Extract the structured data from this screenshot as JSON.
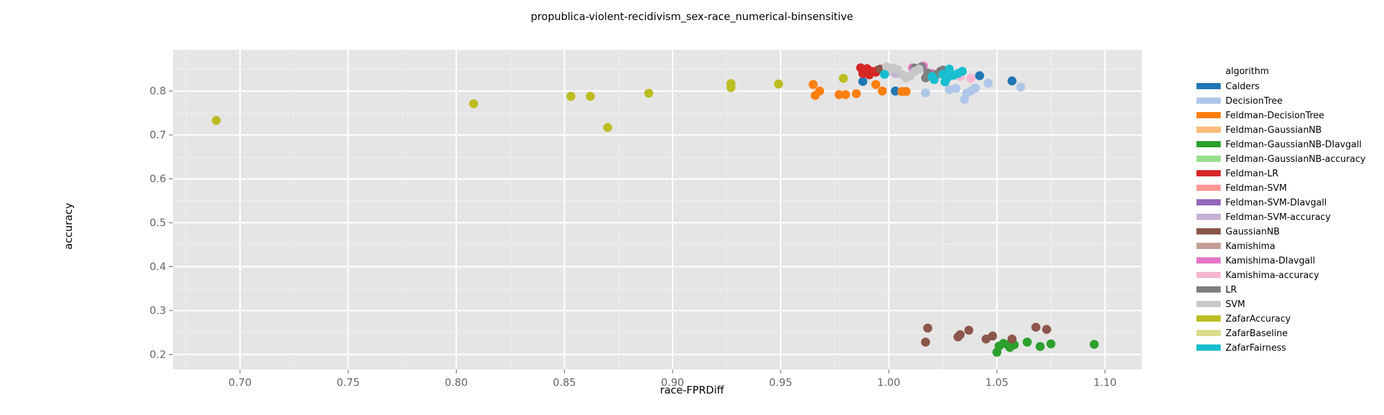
{
  "chart_data": {
    "type": "scatter",
    "title": "propublica-violent-recidivism_sex-race_numerical-binsensitive",
    "xlabel": "race-FPRDiff",
    "ylabel": "accuracy",
    "xlim": [
      0.669,
      1.117
    ],
    "ylim": [
      0.166,
      0.894
    ],
    "x_ticks": [
      0.7,
      0.75,
      0.8,
      0.85,
      0.9,
      0.95,
      1.0,
      1.05,
      1.1
    ],
    "x_tick_labels": [
      "0.70",
      "0.75",
      "0.80",
      "0.85",
      "0.90",
      "0.95",
      "1.00",
      "1.05",
      "1.10"
    ],
    "y_ticks": [
      0.2,
      0.3,
      0.4,
      0.5,
      0.6,
      0.7,
      0.8
    ],
    "y_tick_labels": [
      "0.2",
      "0.3",
      "0.4",
      "0.5",
      "0.6",
      "0.7",
      "0.8"
    ],
    "grid": true,
    "legend_position": "right",
    "legend_title": "algorithm",
    "series": [
      {
        "name": "Calders",
        "color": "#1f77b4",
        "points": [
          [
            0.988,
            0.822
          ],
          [
            1.003,
            0.8
          ],
          [
            1.042,
            0.835
          ],
          [
            1.057,
            0.823
          ]
        ]
      },
      {
        "name": "DecisionTree",
        "color": "#aec7e8",
        "points": [
          [
            1.017,
            0.796
          ],
          [
            1.028,
            0.803
          ],
          [
            1.031,
            0.806
          ],
          [
            1.035,
            0.781
          ],
          [
            1.036,
            0.795
          ],
          [
            1.038,
            0.8
          ],
          [
            1.04,
            0.807
          ],
          [
            1.046,
            0.818
          ],
          [
            1.061,
            0.809
          ]
        ]
      },
      {
        "name": "Feldman-DecisionTree",
        "color": "#ff7f0e",
        "points": [
          [
            0.965,
            0.815
          ],
          [
            0.966,
            0.79
          ],
          [
            0.968,
            0.8
          ],
          [
            0.977,
            0.792
          ],
          [
            0.98,
            0.792
          ],
          [
            0.985,
            0.794
          ],
          [
            0.994,
            0.815
          ],
          [
            0.997,
            0.8
          ],
          [
            1.006,
            0.799
          ],
          [
            1.008,
            0.799
          ]
        ]
      },
      {
        "name": "Feldman-GaussianNB",
        "color": "#ffbb78",
        "points": []
      },
      {
        "name": "Feldman-GaussianNB-DIavgall",
        "color": "#2ca02c",
        "points": [
          [
            1.05,
            0.205
          ],
          [
            1.051,
            0.219
          ],
          [
            1.053,
            0.225
          ],
          [
            1.055,
            0.222
          ],
          [
            1.056,
            0.216
          ],
          [
            1.058,
            0.222
          ],
          [
            1.064,
            0.228
          ],
          [
            1.07,
            0.218
          ],
          [
            1.075,
            0.224
          ],
          [
            1.095,
            0.223
          ]
        ]
      },
      {
        "name": "Feldman-GaussianNB-accuracy",
        "color": "#98df8a",
        "points": []
      },
      {
        "name": "Feldman-LR",
        "color": "#d62728",
        "points": [
          [
            0.987,
            0.853
          ],
          [
            0.988,
            0.84
          ],
          [
            0.989,
            0.846
          ],
          [
            0.99,
            0.851
          ],
          [
            0.991,
            0.837
          ],
          [
            0.992,
            0.845
          ],
          [
            0.994,
            0.843
          ],
          [
            0.995,
            0.848
          ]
        ]
      },
      {
        "name": "Feldman-SVM",
        "color": "#ff9896",
        "points": []
      },
      {
        "name": "Feldman-SVM-DIavgall",
        "color": "#9467bd",
        "points": []
      },
      {
        "name": "Feldman-SVM-accuracy",
        "color": "#c5b0d5",
        "points": [
          [
            1.003,
            0.84
          ]
        ]
      },
      {
        "name": "GaussianNB",
        "color": "#8c564b",
        "points": [
          [
            0.996,
            0.85
          ],
          [
            1.017,
            0.228
          ],
          [
            1.018,
            0.26
          ],
          [
            1.032,
            0.24
          ],
          [
            1.033,
            0.245
          ],
          [
            1.037,
            0.255
          ],
          [
            1.045,
            0.235
          ],
          [
            1.048,
            0.242
          ],
          [
            1.057,
            0.235
          ],
          [
            1.068,
            0.262
          ],
          [
            1.073,
            0.257
          ],
          [
            1.024,
            0.845
          ]
        ]
      },
      {
        "name": "Kamishima",
        "color": "#c49c94",
        "points": []
      },
      {
        "name": "Kamishima-DIavgall",
        "color": "#e377c2",
        "points": [
          [
            1.011,
            0.853
          ],
          [
            1.016,
            0.857
          ],
          [
            1.02,
            0.84
          ]
        ]
      },
      {
        "name": "Kamishima-accuracy",
        "color": "#f7b6d2",
        "points": [
          [
            1.033,
            0.833
          ],
          [
            1.038,
            0.829
          ]
        ]
      },
      {
        "name": "LR",
        "color": "#7f7f7f",
        "points": [
          [
            1.012,
            0.852
          ],
          [
            1.015,
            0.855
          ],
          [
            1.017,
            0.83
          ],
          [
            1.018,
            0.841
          ],
          [
            1.022,
            0.838
          ],
          [
            1.025,
            0.848
          ]
        ]
      },
      {
        "name": "SVM",
        "color": "#c7c7c7",
        "points": [
          [
            0.999,
            0.855
          ],
          [
            1.0,
            0.845
          ],
          [
            1.002,
            0.852
          ],
          [
            1.004,
            0.849
          ],
          [
            1.006,
            0.838
          ],
          [
            1.008,
            0.83
          ],
          [
            1.01,
            0.835
          ],
          [
            1.012,
            0.845
          ],
          [
            1.014,
            0.85
          ]
        ]
      },
      {
        "name": "ZafarAccuracy",
        "color": "#bcbd22",
        "points": [
          [
            0.689,
            0.733
          ],
          [
            0.808,
            0.771
          ],
          [
            0.853,
            0.788
          ],
          [
            0.862,
            0.788
          ],
          [
            0.87,
            0.717
          ],
          [
            0.889,
            0.795
          ],
          [
            0.927,
            0.808
          ],
          [
            0.927,
            0.817
          ],
          [
            0.949,
            0.816
          ],
          [
            0.979,
            0.829
          ]
        ]
      },
      {
        "name": "ZafarBaseline",
        "color": "#dbdb8d",
        "points": []
      },
      {
        "name": "ZafarFairness",
        "color": "#17becf",
        "points": [
          [
            0.998,
            0.838
          ],
          [
            1.02,
            0.833
          ],
          [
            1.021,
            0.826
          ],
          [
            1.025,
            0.838
          ],
          [
            1.026,
            0.821
          ],
          [
            1.027,
            0.83
          ],
          [
            1.028,
            0.85
          ],
          [
            1.03,
            0.836
          ],
          [
            1.032,
            0.84
          ],
          [
            1.034,
            0.845
          ]
        ]
      }
    ]
  }
}
